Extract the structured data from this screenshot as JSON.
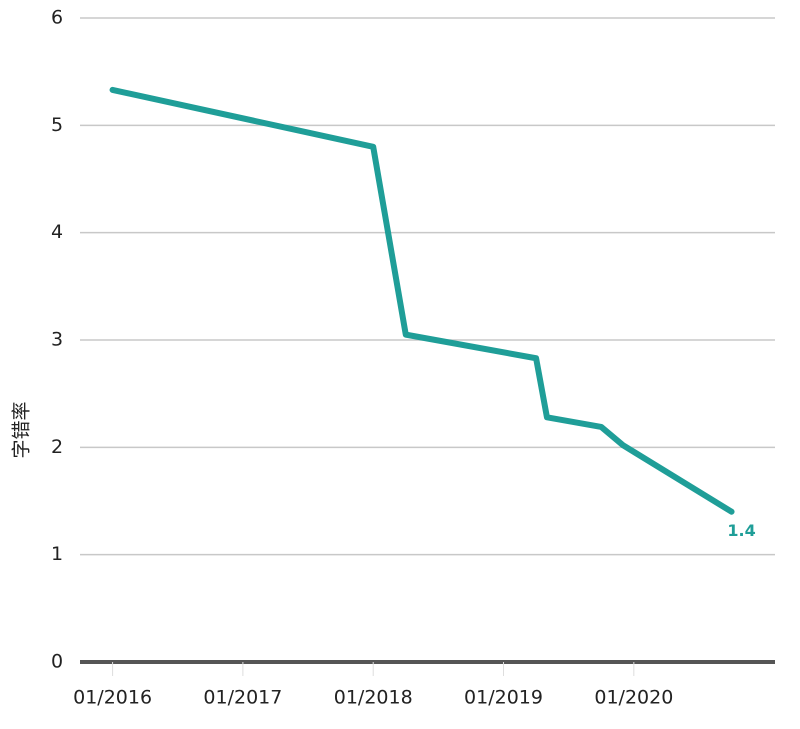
{
  "chart_data": {
    "type": "line",
    "y_label": "字错率",
    "x": [
      "01/2016",
      "01/2018",
      "04/2018",
      "04/2019",
      "05/2019",
      "10/2019",
      "12/2019",
      "10/2020"
    ],
    "values": [
      5.33,
      4.8,
      3.05,
      2.83,
      2.28,
      2.19,
      2.02,
      1.4
    ],
    "color": "#1f9e98",
    "xlim": [
      "10/2015",
      "02/2021"
    ],
    "xticks": [
      "01/2016",
      "01/2017",
      "01/2018",
      "01/2019",
      "01/2020"
    ],
    "ylim": [
      0,
      6
    ],
    "yticks": [
      0,
      1,
      2,
      3,
      4,
      5,
      6
    ],
    "grid": true
  }
}
